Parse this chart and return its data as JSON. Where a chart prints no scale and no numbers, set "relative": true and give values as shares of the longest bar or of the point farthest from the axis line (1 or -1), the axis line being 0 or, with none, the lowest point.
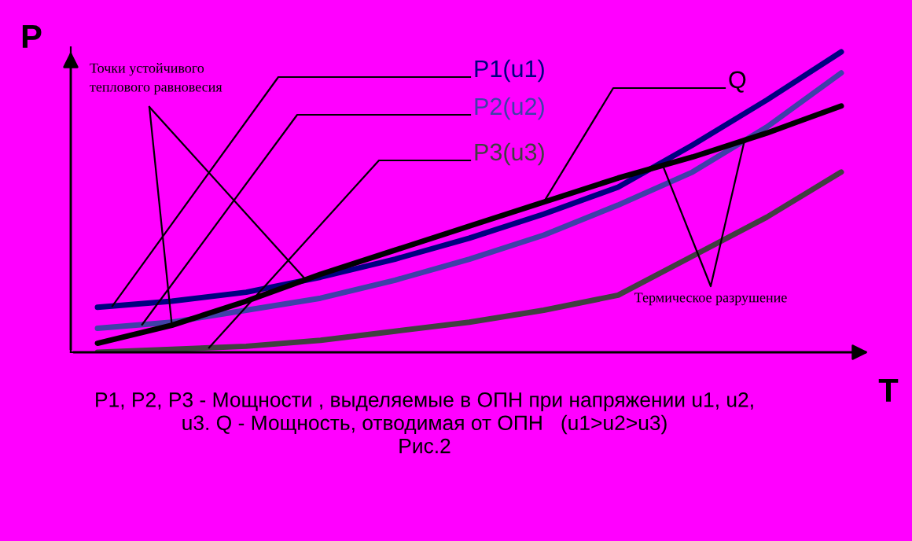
{
  "chart_data": {
    "type": "line",
    "relative": true,
    "tick_labels": false,
    "xlabel": "T",
    "ylabel": "P",
    "categories": [
      null,
      null,
      null,
      null,
      null,
      null,
      null,
      null,
      null,
      null,
      null
    ],
    "series": [
      {
        "name": "P1(u1)",
        "color": "#000080",
        "values": [
          0.15,
          0.17,
          0.2,
          0.25,
          0.31,
          0.38,
          0.46,
          0.55,
          0.69,
          0.84,
          1
        ]
      },
      {
        "name": "P2(u2)",
        "color": "#4040a8",
        "values": [
          0.08,
          0.1,
          0.14,
          0.18,
          0.24,
          0.31,
          0.39,
          0.49,
          0.6,
          0.75,
          0.93
        ]
      },
      {
        "name": "P3(u3)",
        "color": "#404040",
        "values": [
          0,
          0.01,
          0.02,
          0.04,
          0.07,
          0.1,
          0.14,
          0.19,
          0.32,
          0.45,
          0.6
        ]
      },
      {
        "name": "Q",
        "color": "#000000",
        "values": [
          0.03,
          0.09,
          0.17,
          0.26,
          0.34,
          0.42,
          0.5,
          0.58,
          0.65,
          0.73,
          0.82
        ]
      }
    ],
    "annotations": [
      "Точки устойчивого\nтеплового равновесия",
      "Термическое разрушение",
      "P1, P2, P3 - Мощности , выделяемые в ОПН при напряжении u1, u2,\nu3. Q - Мощность, отводимая от ОПН   (u1>u2>u3)\nРис.2"
    ]
  }
}
